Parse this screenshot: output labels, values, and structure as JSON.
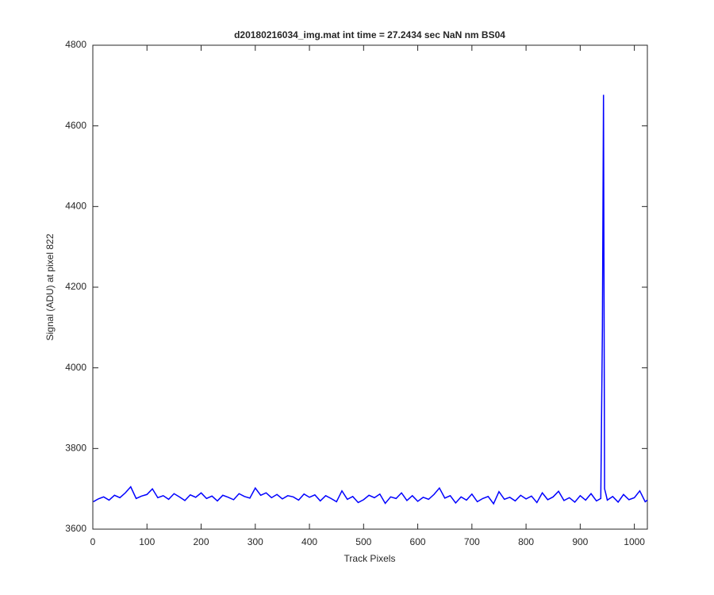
{
  "chart_data": {
    "type": "line",
    "title": "d20180216034_img.mat int time = 27.2434 sec  NaN nm BS04",
    "x_label": "Track Pixels",
    "y_label": "Signal (ADU) at pixel 822",
    "x": [
      1,
      10,
      20,
      30,
      40,
      50,
      60,
      70,
      80,
      90,
      100,
      110,
      120,
      130,
      140,
      150,
      160,
      170,
      180,
      190,
      200,
      210,
      220,
      230,
      240,
      250,
      260,
      270,
      280,
      290,
      300,
      310,
      320,
      330,
      340,
      350,
      360,
      370,
      380,
      390,
      400,
      410,
      420,
      430,
      440,
      450,
      460,
      470,
      480,
      490,
      500,
      510,
      520,
      530,
      540,
      550,
      560,
      570,
      580,
      590,
      600,
      610,
      620,
      630,
      640,
      650,
      660,
      670,
      680,
      690,
      700,
      710,
      720,
      730,
      740,
      750,
      760,
      770,
      780,
      790,
      800,
      810,
      820,
      830,
      840,
      850,
      860,
      870,
      880,
      890,
      900,
      910,
      920,
      930,
      938,
      941,
      943,
      945,
      948,
      950,
      960,
      970,
      980,
      990,
      1000,
      1010,
      1020,
      1024
    ],
    "series": [
      {
        "color": "#0000ff",
        "values": [
          3668,
          3675,
          3680,
          3672,
          3684,
          3678,
          3690,
          3705,
          3676,
          3682,
          3686,
          3700,
          3678,
          3683,
          3674,
          3688,
          3680,
          3671,
          3685,
          3679,
          3690,
          3676,
          3682,
          3670,
          3684,
          3679,
          3673,
          3688,
          3681,
          3677,
          3702,
          3684,
          3690,
          3678,
          3686,
          3675,
          3683,
          3680,
          3672,
          3687,
          3679,
          3685,
          3670,
          3683,
          3676,
          3668,
          3695,
          3674,
          3681,
          3666,
          3673,
          3684,
          3678,
          3687,
          3664,
          3680,
          3676,
          3690,
          3671,
          3683,
          3669,
          3679,
          3674,
          3686,
          3702,
          3677,
          3683,
          3665,
          3680,
          3672,
          3687,
          3668,
          3676,
          3681,
          3663,
          3693,
          3674,
          3679,
          3670,
          3684,
          3675,
          3682,
          3666,
          3690,
          3673,
          3680,
          3694,
          3671,
          3678,
          3667,
          3683,
          3672,
          3688,
          3670,
          3676,
          4100,
          4677,
          3700,
          3684,
          3672,
          3681,
          3667,
          3686,
          3673,
          3678,
          3695,
          3668,
          3672
        ]
      }
    ],
    "xlim": [
      0,
      1024
    ],
    "xticks": [
      0,
      100,
      200,
      300,
      400,
      500,
      600,
      700,
      800,
      900,
      1000
    ],
    "ylim": [
      3600,
      4800
    ],
    "yticks": [
      3600,
      3800,
      4000,
      4200,
      4400,
      4600,
      4800
    ],
    "grid": false
  }
}
